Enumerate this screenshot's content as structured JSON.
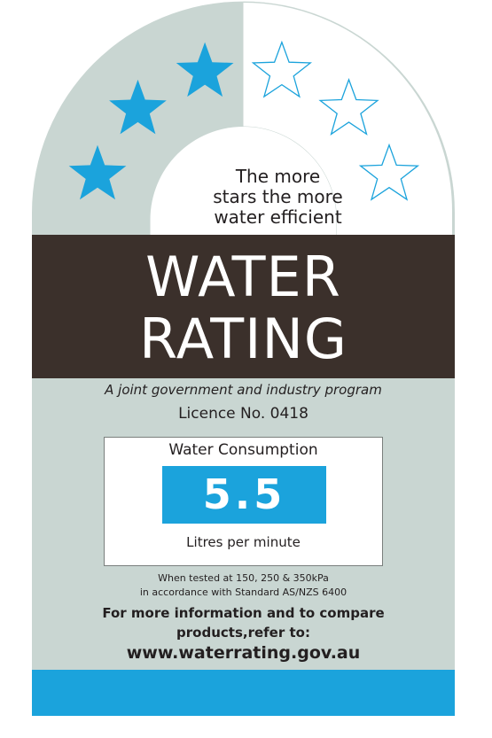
{
  "rating": {
    "stars_total": 6,
    "stars_filled": 3,
    "icon": "star-icon"
  },
  "tagline": {
    "line1": "The more",
    "line2": "stars the more",
    "line3": "water efficient"
  },
  "title": {
    "line1": "WATER",
    "line2": "RATING"
  },
  "program": "A joint government and industry program",
  "licence": "Licence No. 0418",
  "consumption": {
    "heading": "Water Consumption",
    "value": "5.5",
    "unit": "Litres per minute"
  },
  "test": {
    "line1": "When tested at 150, 250 & 350kPa",
    "line2": "in accordance with Standard AS/NZS 6400"
  },
  "info": {
    "line1": "For more information and to compare",
    "line2": "products,refer to:",
    "url": "www.waterrating.gov.au"
  },
  "colors": {
    "panel": "#c9d6d2",
    "band": "#3b302b",
    "accent_blue": "#1ba3dc",
    "filled_star": "#1ba3dc",
    "empty_star_outline": "#1ba3dc"
  }
}
